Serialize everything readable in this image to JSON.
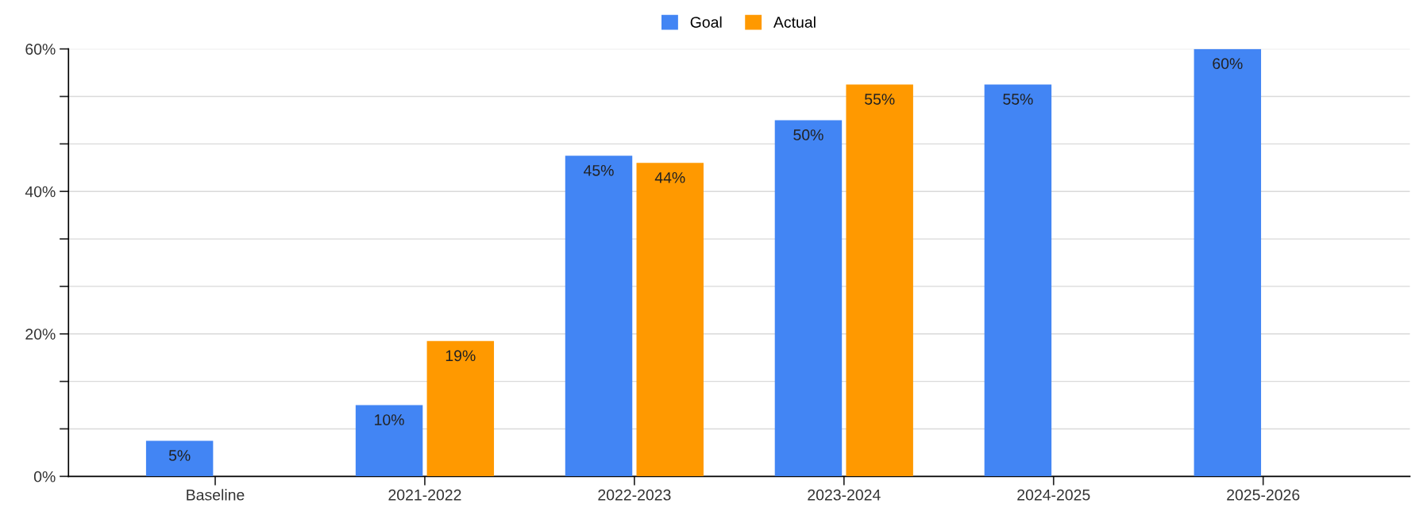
{
  "chart_data": {
    "type": "bar",
    "categories": [
      "Baseline",
      "2021-2022",
      "2022-2023",
      "2023-2024",
      "2024-2025",
      "2025-2026"
    ],
    "series": [
      {
        "name": "Goal",
        "color": "#4285f4",
        "values": [
          5,
          10,
          45,
          50,
          55,
          60
        ],
        "value_labels": [
          "5%",
          "10%",
          "45%",
          "50%",
          "55%",
          "60%"
        ]
      },
      {
        "name": "Actual",
        "color": "#ff9900",
        "values": [
          null,
          19,
          44,
          55,
          null,
          null
        ],
        "value_labels": [
          null,
          "19%",
          "44%",
          "55%",
          null,
          null
        ]
      }
    ],
    "ylim": [
      0,
      60
    ],
    "yticks": [
      {
        "value": 0,
        "label": "0%"
      },
      {
        "value": 6.67,
        "label": null
      },
      {
        "value": 13.33,
        "label": null
      },
      {
        "value": 20,
        "label": "20%"
      },
      {
        "value": 26.67,
        "label": null
      },
      {
        "value": 33.33,
        "label": null
      },
      {
        "value": 40,
        "label": "40%"
      },
      {
        "value": 46.67,
        "label": null
      },
      {
        "value": 53.33,
        "label": null
      },
      {
        "value": 60,
        "label": "60%"
      }
    ],
    "grid": "y",
    "legend": "top"
  }
}
